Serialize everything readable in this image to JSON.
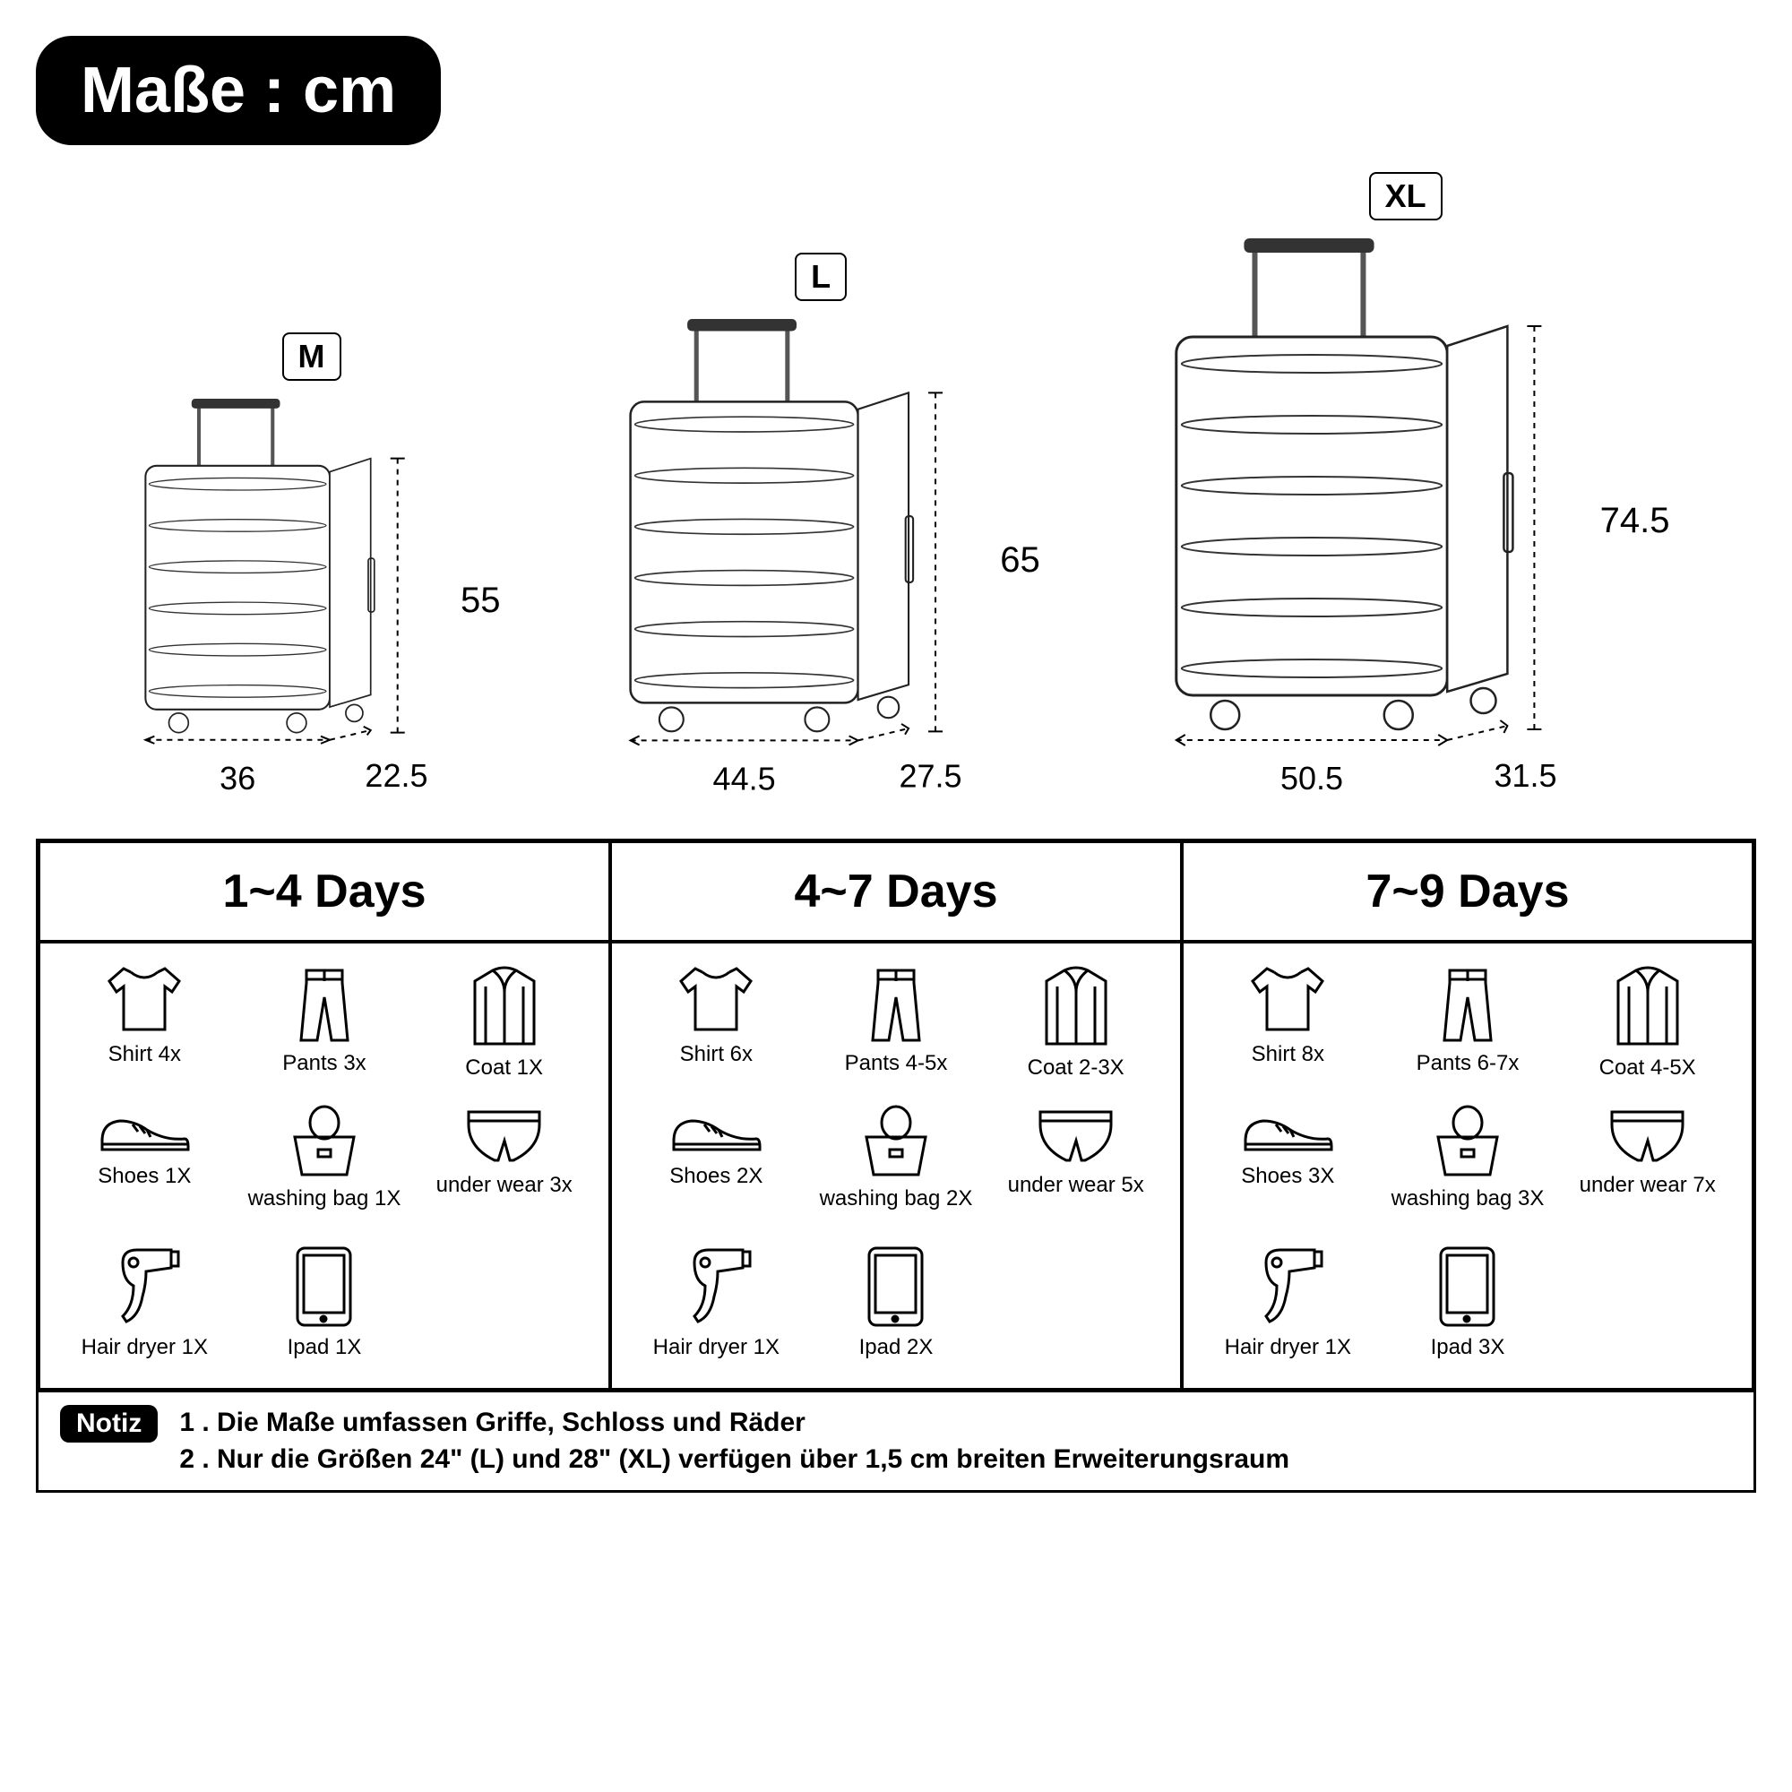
{
  "title": "Maße : cm",
  "suitcases": [
    {
      "size": "M",
      "height": "55",
      "width": "36",
      "depth": "22.5",
      "scale": 0.68
    },
    {
      "size": "L",
      "height": "65",
      "width": "44.5",
      "depth": "27.5",
      "scale": 0.84
    },
    {
      "size": "XL",
      "height": "74.5",
      "width": "50.5",
      "depth": "31.5",
      "scale": 1.0
    }
  ],
  "columns": [
    {
      "heading": "1~4 Days",
      "items": [
        {
          "icon": "shirt",
          "label": "Shirt 4x"
        },
        {
          "icon": "pants",
          "label": "Pants 3x"
        },
        {
          "icon": "coat",
          "label": "Coat 1X"
        },
        {
          "icon": "shoes",
          "label": "Shoes 1X"
        },
        {
          "icon": "bag",
          "label": "washing bag 1X"
        },
        {
          "icon": "under",
          "label": "under wear 3x"
        },
        {
          "icon": "dryer",
          "label": "Hair dryer 1X"
        },
        {
          "icon": "ipad",
          "label": "Ipad 1X"
        }
      ]
    },
    {
      "heading": "4~7 Days",
      "items": [
        {
          "icon": "shirt",
          "label": "Shirt 6x"
        },
        {
          "icon": "pants",
          "label": "Pants 4-5x"
        },
        {
          "icon": "coat",
          "label": "Coat 2-3X"
        },
        {
          "icon": "shoes",
          "label": "Shoes 2X"
        },
        {
          "icon": "bag",
          "label": "washing bag 2X"
        },
        {
          "icon": "under",
          "label": "under wear 5x"
        },
        {
          "icon": "dryer",
          "label": "Hair dryer 1X"
        },
        {
          "icon": "ipad",
          "label": "Ipad 2X"
        }
      ]
    },
    {
      "heading": "7~9 Days",
      "items": [
        {
          "icon": "shirt",
          "label": "Shirt 8x"
        },
        {
          "icon": "pants",
          "label": "Pants 6-7x"
        },
        {
          "icon": "coat",
          "label": "Coat 4-5X"
        },
        {
          "icon": "shoes",
          "label": "Shoes 3X"
        },
        {
          "icon": "bag",
          "label": "washing bag 3X"
        },
        {
          "icon": "under",
          "label": "under wear 7x"
        },
        {
          "icon": "dryer",
          "label": "Hair dryer 1X"
        },
        {
          "icon": "ipad",
          "label": "Ipad 3X"
        }
      ]
    }
  ],
  "notice_label": "Notiz",
  "notice_lines": [
    "1 . Die Maße umfassen Griffe, Schloss und Räder",
    "2 . Nur die Größen 24\" (L) und 28\" (XL) verfügen über 1,5 cm breiten Erweiterungsraum"
  ],
  "colors": {
    "black": "#000000",
    "white": "#ffffff",
    "stroke": "#1a1a1a",
    "light": "#888888"
  }
}
